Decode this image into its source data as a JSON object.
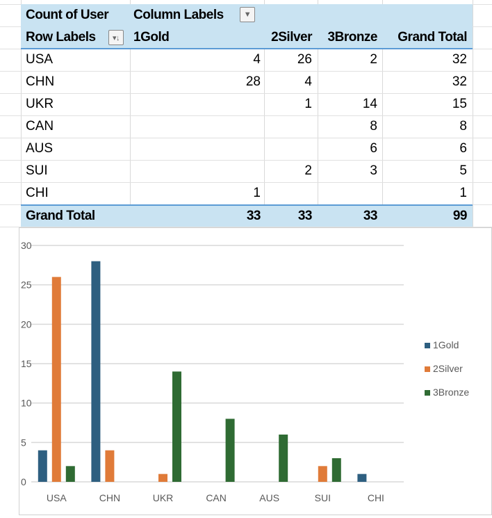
{
  "pivot": {
    "value_field": "Count of User",
    "column_labels": "Column Labels",
    "row_labels": "Row Labels",
    "columns": [
      "1Gold",
      "2Silver",
      "3Bronze",
      "Grand Total"
    ],
    "rows": [
      {
        "label": "USA",
        "values": [
          "4",
          "26",
          "2",
          "32"
        ]
      },
      {
        "label": "CHN",
        "values": [
          "28",
          "4",
          "",
          "32"
        ]
      },
      {
        "label": "UKR",
        "values": [
          "",
          "1",
          "14",
          "15"
        ]
      },
      {
        "label": "CAN",
        "values": [
          "",
          "",
          "8",
          "8"
        ]
      },
      {
        "label": "AUS",
        "values": [
          "",
          "",
          "6",
          "6"
        ]
      },
      {
        "label": "SUI",
        "values": [
          "",
          "2",
          "3",
          "5"
        ]
      },
      {
        "label": "CHI",
        "values": [
          "1",
          "",
          "",
          "1"
        ]
      }
    ],
    "grand_total": {
      "label": "Grand Total",
      "values": [
        "33",
        "33",
        "33",
        "99"
      ]
    },
    "filter_icon": "dropdown-arrow-icon",
    "sort_icon": "sort-filter-icon"
  },
  "chart_data": {
    "type": "bar",
    "categories": [
      "USA",
      "CHN",
      "UKR",
      "CAN",
      "AUS",
      "SUI",
      "CHI"
    ],
    "series": [
      {
        "name": "1Gold",
        "color": "#2e5f80",
        "values": [
          4,
          28,
          0,
          0,
          0,
          0,
          1
        ]
      },
      {
        "name": "2Silver",
        "color": "#e07b39",
        "values": [
          26,
          4,
          1,
          0,
          0,
          2,
          0
        ]
      },
      {
        "name": "3Bronze",
        "color": "#2f6b33",
        "values": [
          2,
          0,
          14,
          8,
          6,
          3,
          0
        ]
      }
    ],
    "yticks": [
      "0",
      "5",
      "10",
      "15",
      "20",
      "25",
      "30"
    ],
    "ylim": [
      0,
      30
    ],
    "grid": true,
    "legend": "right"
  }
}
